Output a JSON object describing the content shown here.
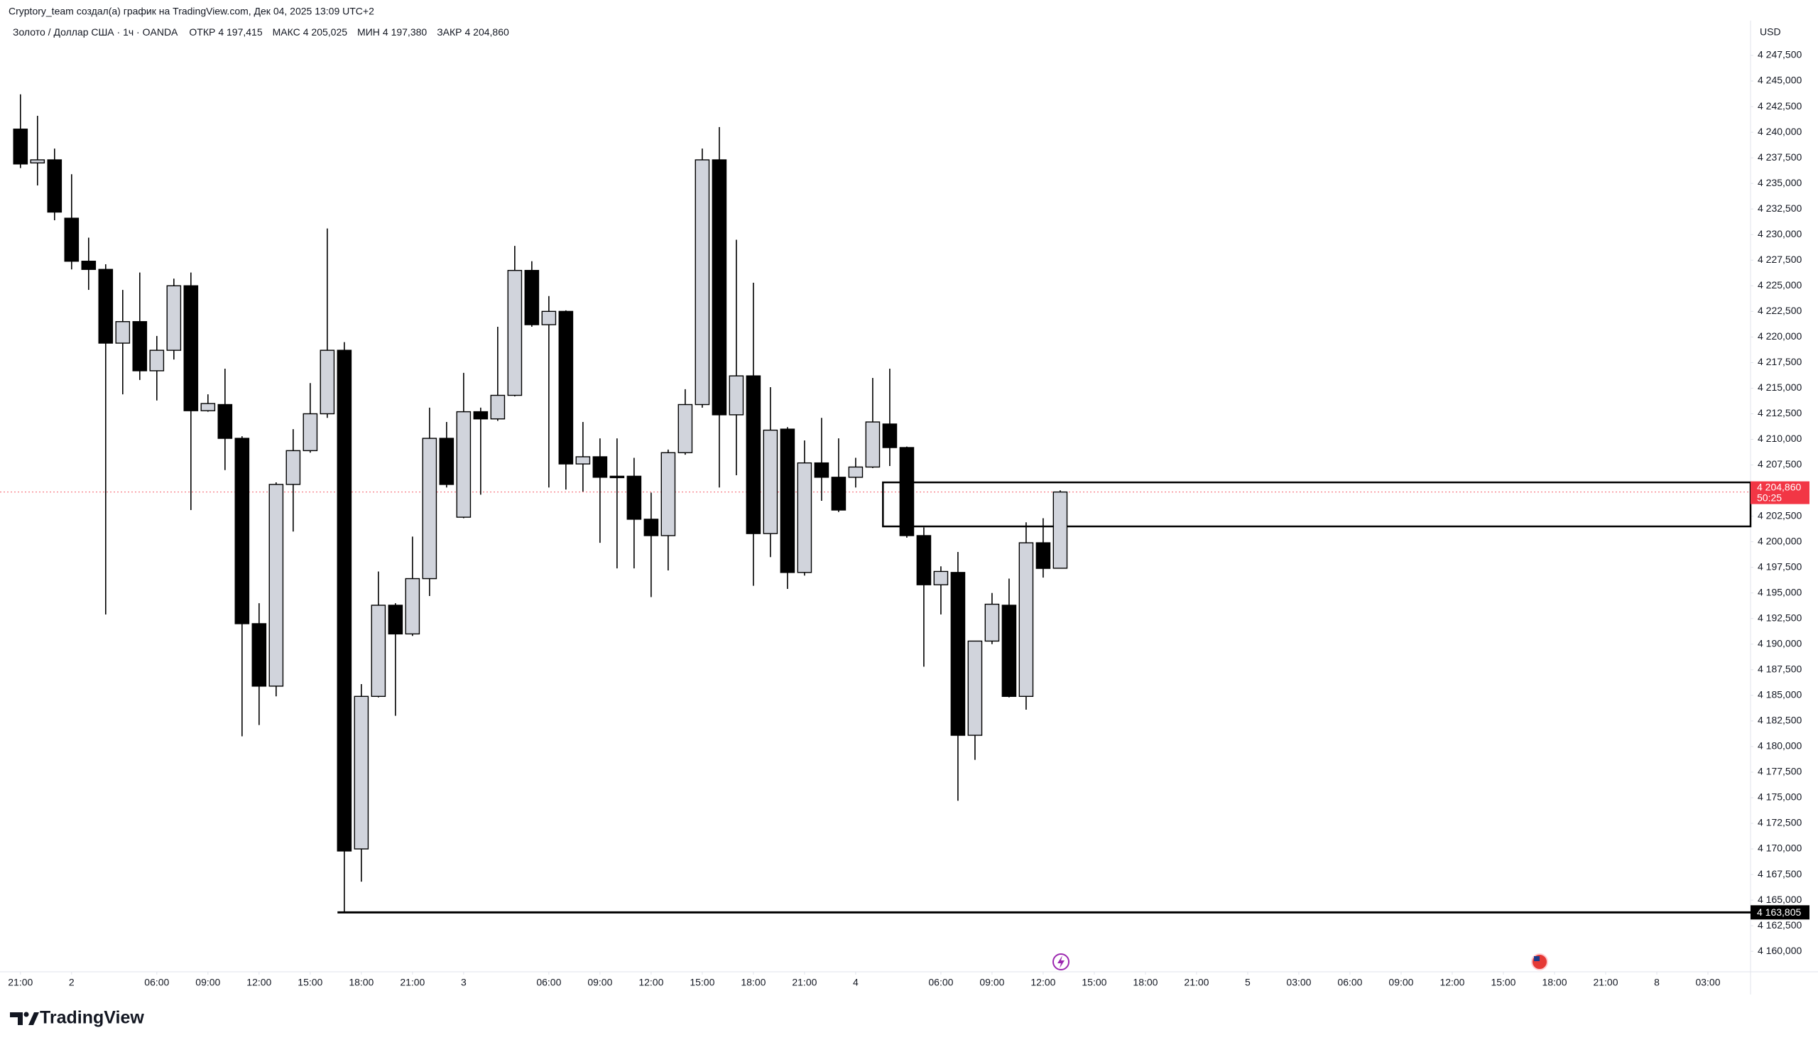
{
  "header": "Cryptory_team создал(а) график на TradingView.com, Дек 04, 2025 13:09 UTC+2",
  "footer": "TradingView",
  "chart_data": {
    "type": "candlestick",
    "symbol": "Золото / Доллар США · 1ч · OANDA",
    "ohlc_legend": [
      {
        "label": "ОТКР",
        "value": "4 197,415"
      },
      {
        "label": "МАКС",
        "value": "4 205,025"
      },
      {
        "label": "МИН",
        "value": "4 197,380"
      },
      {
        "label": "ЗАКР",
        "value": "4 204,860"
      }
    ],
    "currency": "USD",
    "up_color": "#d1d4dc",
    "down_color": "#000000",
    "open": [
      4240.3,
      4237.0,
      4237.3,
      4231.6,
      4227.4,
      4226.6,
      4219.4,
      4221.5,
      4216.7,
      4218.7,
      4225.0,
      4212.8,
      4213.4,
      4210.1,
      4192.0,
      4185.9,
      4205.6,
      4208.9,
      4212.5,
      4218.7,
      4170.0,
      4184.9,
      4193.8,
      4191.0,
      4196.4,
      4210.1,
      4202.4,
      4212.7,
      4212.0,
      4214.3,
      4226.5,
      4221.2,
      4222.5,
      4207.6,
      4208.3,
      4206.4,
      4206.4,
      4202.2,
      4200.6,
      4208.7,
      4213.4,
      4237.3,
      4212.4,
      4216.2,
      4200.8,
      4211.0,
      4197.0,
      4207.7,
      4206.3,
      4206.3,
      4207.3,
      4211.5,
      4209.2,
      4200.6,
      4195.8,
      4197.0,
      4181.1,
      4190.3,
      4193.8,
      4184.9,
      4199.9,
      4197.415
    ],
    "high": [
      4243.7,
      4241.6,
      4238.4,
      4235.9,
      4229.7,
      4227.1,
      4224.6,
      4226.3,
      4220.1,
      4225.7,
      4226.3,
      4214.4,
      4216.9,
      4210.3,
      4194.0,
      4205.8,
      4211.0,
      4215.5,
      4230.6,
      4219.5,
      4186.1,
      4197.1,
      4194.0,
      4200.5,
      4213.1,
      4211.7,
      4216.5,
      4213.1,
      4221.0,
      4228.9,
      4227.4,
      4224.0,
      4222.6,
      4211.7,
      4210.1,
      4210.1,
      4208.2,
      4204.8,
      4209.0,
      4214.9,
      4238.4,
      4240.5,
      4229.5,
      4225.3,
      4215.1,
      4211.2,
      4209.9,
      4212.1,
      4210.1,
      4208.2,
      4216.0,
      4216.9,
      4209.3,
      4201.4,
      4197.6,
      4199.0,
      4190.3,
      4195.0,
      4196.4,
      4201.9,
      4202.3,
      4205.025
    ],
    "low": [
      4236.5,
      4234.8,
      4231.4,
      4226.6,
      4224.6,
      4192.9,
      4214.4,
      4215.8,
      4213.8,
      4217.8,
      4203.1,
      4212.7,
      4207.0,
      4181.0,
      4182.1,
      4184.9,
      4201.0,
      4208.7,
      4212.1,
      4163.8,
      4166.8,
      4184.8,
      4183.0,
      4190.8,
      4194.7,
      4205.3,
      4202.3,
      4204.6,
      4211.8,
      4214.2,
      4221.0,
      4205.3,
      4205.1,
      4204.9,
      4199.9,
      4197.4,
      4197.4,
      4194.6,
      4197.2,
      4208.5,
      4213.1,
      4205.3,
      4206.5,
      4195.7,
      4198.5,
      4195.4,
      4196.7,
      4204.0,
      4202.9,
      4205.3,
      4207.2,
      4207.4,
      4200.4,
      4187.8,
      4192.9,
      4174.7,
      4178.7,
      4190.0,
      4184.8,
      4183.6,
      4196.5,
      4197.38
    ],
    "close": [
      4236.9,
      4237.3,
      4232.2,
      4227.4,
      4226.6,
      4219.4,
      4221.5,
      4216.7,
      4218.7,
      4225.0,
      4212.8,
      4213.5,
      4210.1,
      4192.0,
      4185.9,
      4205.6,
      4208.9,
      4212.5,
      4218.7,
      4169.8,
      4184.9,
      4193.8,
      4191.0,
      4196.4,
      4210.1,
      4205.6,
      4212.7,
      4212.0,
      4214.3,
      4226.5,
      4221.2,
      4222.5,
      4207.6,
      4208.3,
      4206.3,
      4206.3,
      4202.2,
      4200.6,
      4208.7,
      4213.4,
      4237.3,
      4212.4,
      4216.2,
      4200.8,
      4210.9,
      4197.0,
      4207.7,
      4206.3,
      4203.1,
      4207.3,
      4211.7,
      4209.2,
      4200.6,
      4195.8,
      4197.1,
      4181.1,
      4190.3,
      4193.9,
      4184.9,
      4199.9,
      4197.4,
      4204.86
    ],
    "xlim": [
      -1.2,
      101.5
    ],
    "xticks": [
      {
        "value": 0,
        "label": "21:00"
      },
      {
        "value": 3,
        "label": "2"
      },
      {
        "value": 8,
        "label": "06:00"
      },
      {
        "value": 11,
        "label": "09:00"
      },
      {
        "value": 14,
        "label": "12:00"
      },
      {
        "value": 17,
        "label": "15:00"
      },
      {
        "value": 20,
        "label": "18:00"
      },
      {
        "value": 23,
        "label": "21:00"
      },
      {
        "value": 26,
        "label": "3"
      },
      {
        "value": 31,
        "label": "06:00"
      },
      {
        "value": 34,
        "label": "09:00"
      },
      {
        "value": 37,
        "label": "12:00"
      },
      {
        "value": 40,
        "label": "15:00"
      },
      {
        "value": 43,
        "label": "18:00"
      },
      {
        "value": 46,
        "label": "21:00"
      },
      {
        "value": 49,
        "label": "4"
      },
      {
        "value": 54,
        "label": "06:00"
      },
      {
        "value": 57,
        "label": "09:00"
      },
      {
        "value": 60,
        "label": "12:00"
      },
      {
        "value": 63,
        "label": "15:00"
      },
      {
        "value": 66,
        "label": "18:00"
      },
      {
        "value": 69,
        "label": "21:00"
      },
      {
        "value": 72,
        "label": "5"
      },
      {
        "value": 75,
        "label": "03:00"
      },
      {
        "value": 78,
        "label": "06:00"
      },
      {
        "value": 81,
        "label": "09:00"
      },
      {
        "value": 84,
        "label": "12:00"
      },
      {
        "value": 87,
        "label": "15:00"
      },
      {
        "value": 90,
        "label": "18:00"
      },
      {
        "value": 93,
        "label": "21:00"
      },
      {
        "value": 96,
        "label": "8"
      },
      {
        "value": 99,
        "label": "03:00"
      }
    ],
    "ylim": [
      4158.0,
      4250.9
    ],
    "yticks": [
      {
        "value": 4160,
        "label": "4 160,000"
      },
      {
        "value": 4162.5,
        "label": "4 162,500"
      },
      {
        "value": 4165,
        "label": "4 165,000"
      },
      {
        "value": 4167.5,
        "label": "4 167,500"
      },
      {
        "value": 4170,
        "label": "4 170,000"
      },
      {
        "value": 4172.5,
        "label": "4 172,500"
      },
      {
        "value": 4175,
        "label": "4 175,000"
      },
      {
        "value": 4177.5,
        "label": "4 177,500"
      },
      {
        "value": 4180,
        "label": "4 180,000"
      },
      {
        "value": 4182.5,
        "label": "4 182,500"
      },
      {
        "value": 4185,
        "label": "4 185,000"
      },
      {
        "value": 4187.5,
        "label": "4 187,500"
      },
      {
        "value": 4190,
        "label": "4 190,000"
      },
      {
        "value": 4192.5,
        "label": "4 192,500"
      },
      {
        "value": 4195,
        "label": "4 195,000"
      },
      {
        "value": 4197.5,
        "label": "4 197,500"
      },
      {
        "value": 4200,
        "label": "4 200,000"
      },
      {
        "value": 4202.5,
        "label": "4 202,500"
      },
      {
        "value": 4205,
        "label": "4 205,000"
      },
      {
        "value": 4207.5,
        "label": "4 207,500"
      },
      {
        "value": 4210,
        "label": "4 210,000"
      },
      {
        "value": 4212.5,
        "label": "4 212,500"
      },
      {
        "value": 4215,
        "label": "4 215,000"
      },
      {
        "value": 4217.5,
        "label": "4 217,500"
      },
      {
        "value": 4220,
        "label": "4 220,000"
      },
      {
        "value": 4222.5,
        "label": "4 222,500"
      },
      {
        "value": 4225,
        "label": "4 225,000"
      },
      {
        "value": 4227.5,
        "label": "4 227,500"
      },
      {
        "value": 4230,
        "label": "4 230,000"
      },
      {
        "value": 4232.5,
        "label": "4 232,500"
      },
      {
        "value": 4235,
        "label": "4 235,000"
      },
      {
        "value": 4237.5,
        "label": "4 237,500"
      },
      {
        "value": 4240,
        "label": "4 240,000"
      },
      {
        "value": 4242.5,
        "label": "4 242,500"
      },
      {
        "value": 4245,
        "label": "4 245,000"
      },
      {
        "value": 4247.5,
        "label": "4 247,500"
      }
    ],
    "last_price": {
      "value": 4204.86,
      "label": "4 204,860",
      "countdown": "50:25",
      "color": "#f23645"
    },
    "hline": {
      "value": 4163.805,
      "label": "4 163,805",
      "x_start": 19
    },
    "zone": {
      "low": 4201.5,
      "high": 4205.8,
      "x_start": 51
    }
  }
}
